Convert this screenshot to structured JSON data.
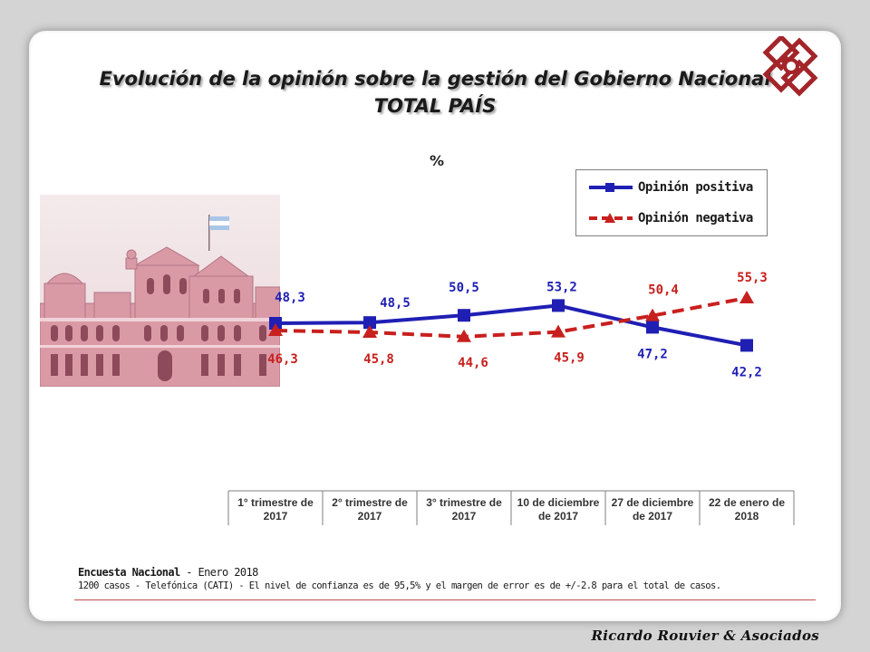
{
  "header": {
    "title_line1": "Evolución de la opinión sobre la gestión del Gobierno Nacional",
    "title_line2": "TOTAL PAÍS"
  },
  "chart_data": {
    "type": "line",
    "unit_label": "%",
    "categories": [
      "1° trimestre de 2017",
      "2° trimestre de 2017",
      "3° trimestre de 2017",
      "10 de diciembre de 2017",
      "27 de diciembre de 2017",
      "22 de enero de 2018"
    ],
    "series": [
      {
        "name": "Opinión positiva",
        "values": [
          48.3,
          48.5,
          50.5,
          53.2,
          47.2,
          42.2
        ],
        "labels": [
          "48,3",
          "48,5",
          "50,5",
          "53,2",
          "47,2",
          "42,2"
        ],
        "color": "#1f1fb4",
        "marker": "square",
        "dash": "solid"
      },
      {
        "name": "Opinión negativa",
        "values": [
          46.3,
          45.8,
          44.6,
          45.9,
          50.4,
          55.3
        ],
        "labels": [
          "46,3",
          "45,8",
          "44,6",
          "45,9",
          "50,4",
          "55,3"
        ],
        "color": "#c8201e",
        "marker": "triangle",
        "dash": "dashed"
      }
    ],
    "legend": "top-right",
    "grid": false
  },
  "footer": {
    "survey_name": "Encuesta Nacional",
    "survey_date": " - Enero 2018",
    "note": "1200 casos - Telefónica (CATI) - El nivel de confianza es de 95,5% y el margen de error es de +/-2.8 para el total de casos."
  },
  "brand": "Ricardo Rouvier & Asociados",
  "icons": {
    "logo": "diamond-logo-icon",
    "picture": "casa-rosada-image"
  }
}
